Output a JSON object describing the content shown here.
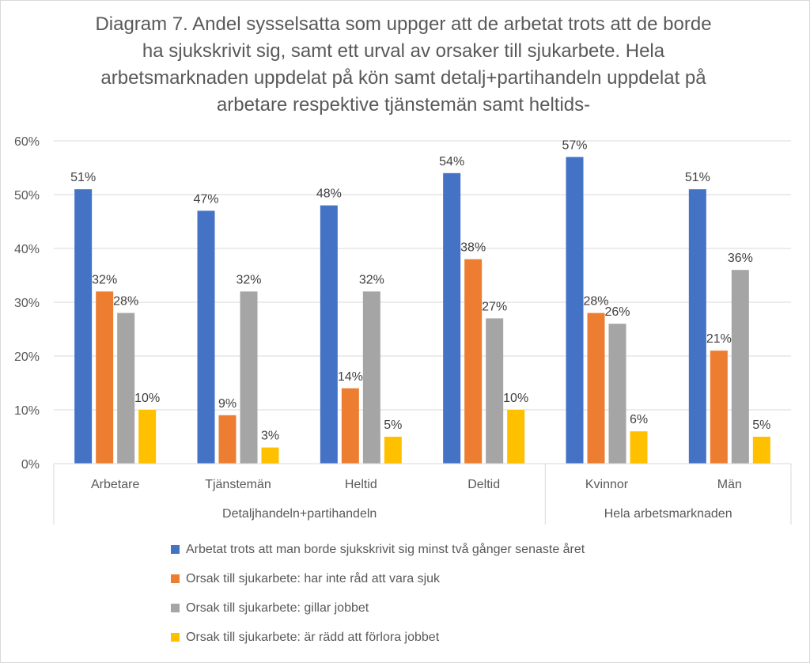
{
  "chart_data": {
    "type": "bar",
    "title": "Diagram 7. Andel sysselsatta som uppger att de arbetat trots att de borde ha sjukskrivit sig, samt ett urval av orsaker till sjukarbete. Hela arbetsmarknaden uppdelat på kön samt detalj+partihandeln uppdelat på arbetare respektive tjänstemän samt heltids-",
    "categories": [
      "Arbetare",
      "Tjänstemän",
      "Heltid",
      "Deltid",
      "Kvinnor",
      "Män"
    ],
    "category_groups": [
      {
        "label": "Detaljhandeln+partihandeln",
        "categories": [
          "Arbetare",
          "Tjänstemän",
          "Heltid",
          "Deltid"
        ]
      },
      {
        "label": "Hela arbetsmarknaden",
        "categories": [
          "Kvinnor",
          "Män"
        ]
      }
    ],
    "series": [
      {
        "name": "Arbetat trots att man borde sjukskrivit sig minst två gånger senaste året",
        "color": "#4472c4",
        "values": [
          51,
          47,
          48,
          54,
          57,
          51
        ],
        "labels": [
          "51%",
          "47%",
          "48%",
          "54%",
          "57%",
          "51%"
        ]
      },
      {
        "name": "Orsak till sjukarbete: har inte råd att vara sjuk",
        "color": "#ed7d31",
        "values": [
          32,
          9,
          14,
          38,
          28,
          21
        ],
        "labels": [
          "32%",
          "9%",
          "14%",
          "38%",
          "28%",
          "21%"
        ]
      },
      {
        "name": "Orsak till sjukarbete: gillar jobbet",
        "color": "#a5a5a5",
        "values": [
          28,
          32,
          32,
          27,
          26,
          36
        ],
        "labels": [
          "28%",
          "32%",
          "32%",
          "27%",
          "26%",
          "36%"
        ]
      },
      {
        "name": "Orsak till sjukarbete: är rädd att förlora jobbet",
        "color": "#ffc000",
        "values": [
          10,
          3,
          5,
          10,
          6,
          5
        ],
        "labels": [
          "10%",
          "3%",
          "5%",
          "10%",
          "6%",
          "5%"
        ]
      }
    ],
    "ylim": [
      0,
      60
    ],
    "yticks": [
      "0%",
      "10%",
      "20%",
      "30%",
      "40%",
      "50%",
      "60%"
    ],
    "grid": true,
    "legend_position": "bottom"
  }
}
